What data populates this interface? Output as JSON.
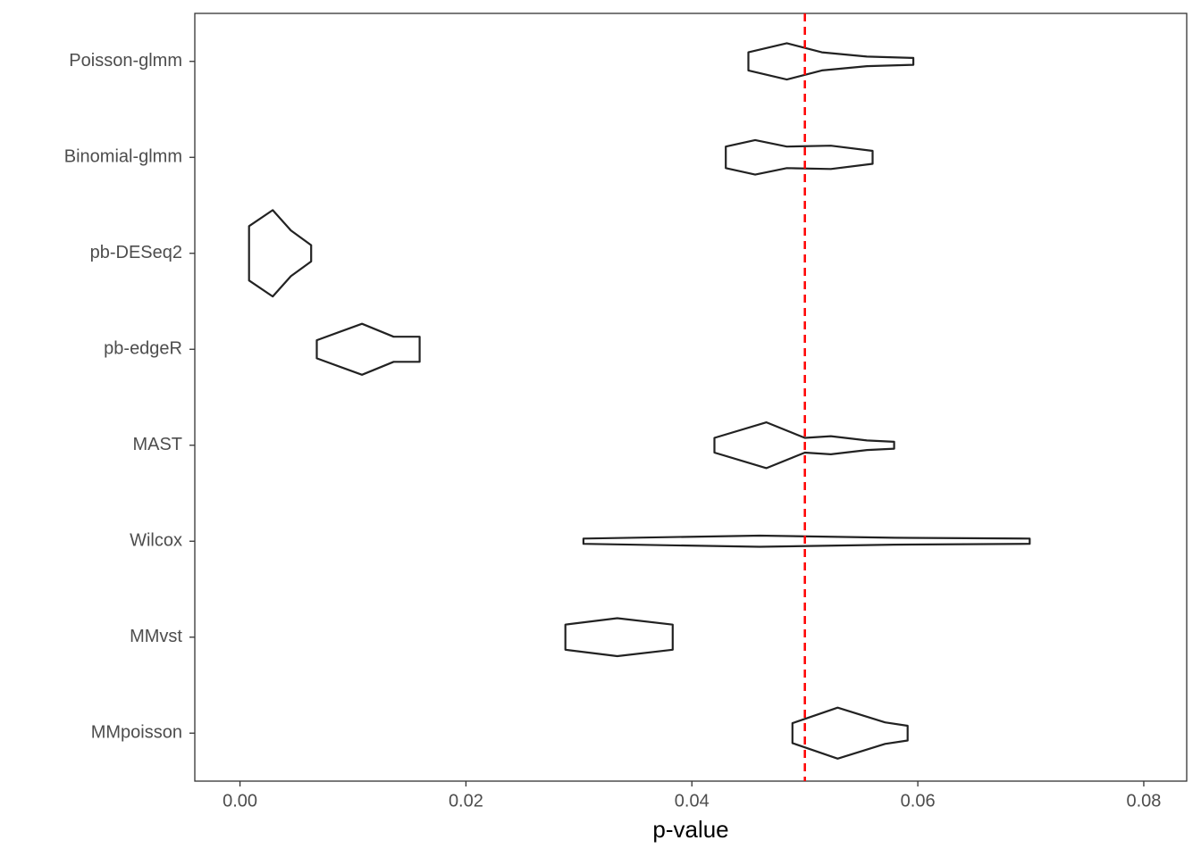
{
  "chart_data": {
    "type": "violin",
    "xlabel": "p-value",
    "categories": [
      "Poisson-glmm",
      "Binomial-glmm",
      "pb-DESeq2",
      "pb-edgeR",
      "MAST",
      "Wilcox",
      "MMvst",
      "MMpoisson"
    ],
    "violins": [
      {
        "x": [
          0.045,
          0.0484,
          0.0515,
          0.0555,
          0.0596
        ],
        "width": [
          0.21,
          0.42,
          0.21,
          0.11,
          0.08
        ]
      },
      {
        "x": [
          0.043,
          0.0456,
          0.0484,
          0.0523,
          0.056
        ],
        "width": [
          0.25,
          0.4,
          0.25,
          0.27,
          0.15
        ]
      },
      {
        "x": [
          0.0008,
          0.0029,
          0.0045,
          0.0063
        ],
        "width": [
          0.63,
          1.0,
          0.53,
          0.19
        ]
      },
      {
        "x": [
          0.0068,
          0.0108,
          0.0136,
          0.0159
        ],
        "width": [
          0.21,
          0.59,
          0.29,
          0.29
        ]
      },
      {
        "x": [
          0.042,
          0.0466,
          0.05,
          0.0523,
          0.0555,
          0.0579
        ],
        "width": [
          0.17,
          0.53,
          0.17,
          0.21,
          0.11,
          0.08
        ]
      },
      {
        "x": [
          0.0304,
          0.046,
          0.0579,
          0.0699
        ],
        "width": [
          0.06,
          0.13,
          0.08,
          0.06
        ]
      },
      {
        "x": [
          0.0288,
          0.0334,
          0.0383
        ],
        "width": [
          0.29,
          0.44,
          0.29
        ]
      },
      {
        "x": [
          0.0489,
          0.0529,
          0.0571,
          0.0591
        ],
        "width": [
          0.23,
          0.59,
          0.25,
          0.17
        ]
      }
    ],
    "color": "#222222",
    "reference_line": {
      "value": 0.05,
      "color": "#ff0000"
    },
    "xlim": [
      -0.004,
      0.0838
    ],
    "xticks": [
      {
        "value": 0,
        "label": "0.00"
      },
      {
        "value": 0.02,
        "label": "0.02"
      },
      {
        "value": 0.04,
        "label": "0.04"
      },
      {
        "value": 0.06,
        "label": "0.06"
      },
      {
        "value": 0.08,
        "label": "0.08"
      }
    ]
  }
}
